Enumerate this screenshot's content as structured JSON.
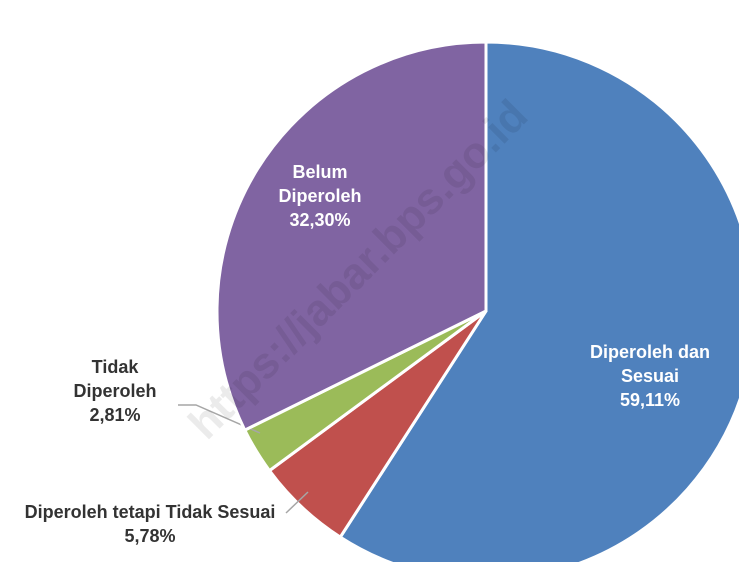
{
  "chart_data": {
    "type": "pie",
    "categories": [
      "Diperoleh dan Sesuai",
      "Diperoleh tetapi Tidak Sesuai",
      "Tidak Diperoleh",
      "Belum Diperoleh"
    ],
    "values": [
      59.11,
      5.78,
      2.81,
      32.3
    ],
    "value_labels": [
      "59,11%",
      "5,78%",
      "2,81%",
      "32,30%"
    ],
    "colors": [
      "#4f81bd",
      "#c0504d",
      "#9bbb59",
      "#8064a2"
    ],
    "watermark": "https://jabar.bps.go.id"
  }
}
